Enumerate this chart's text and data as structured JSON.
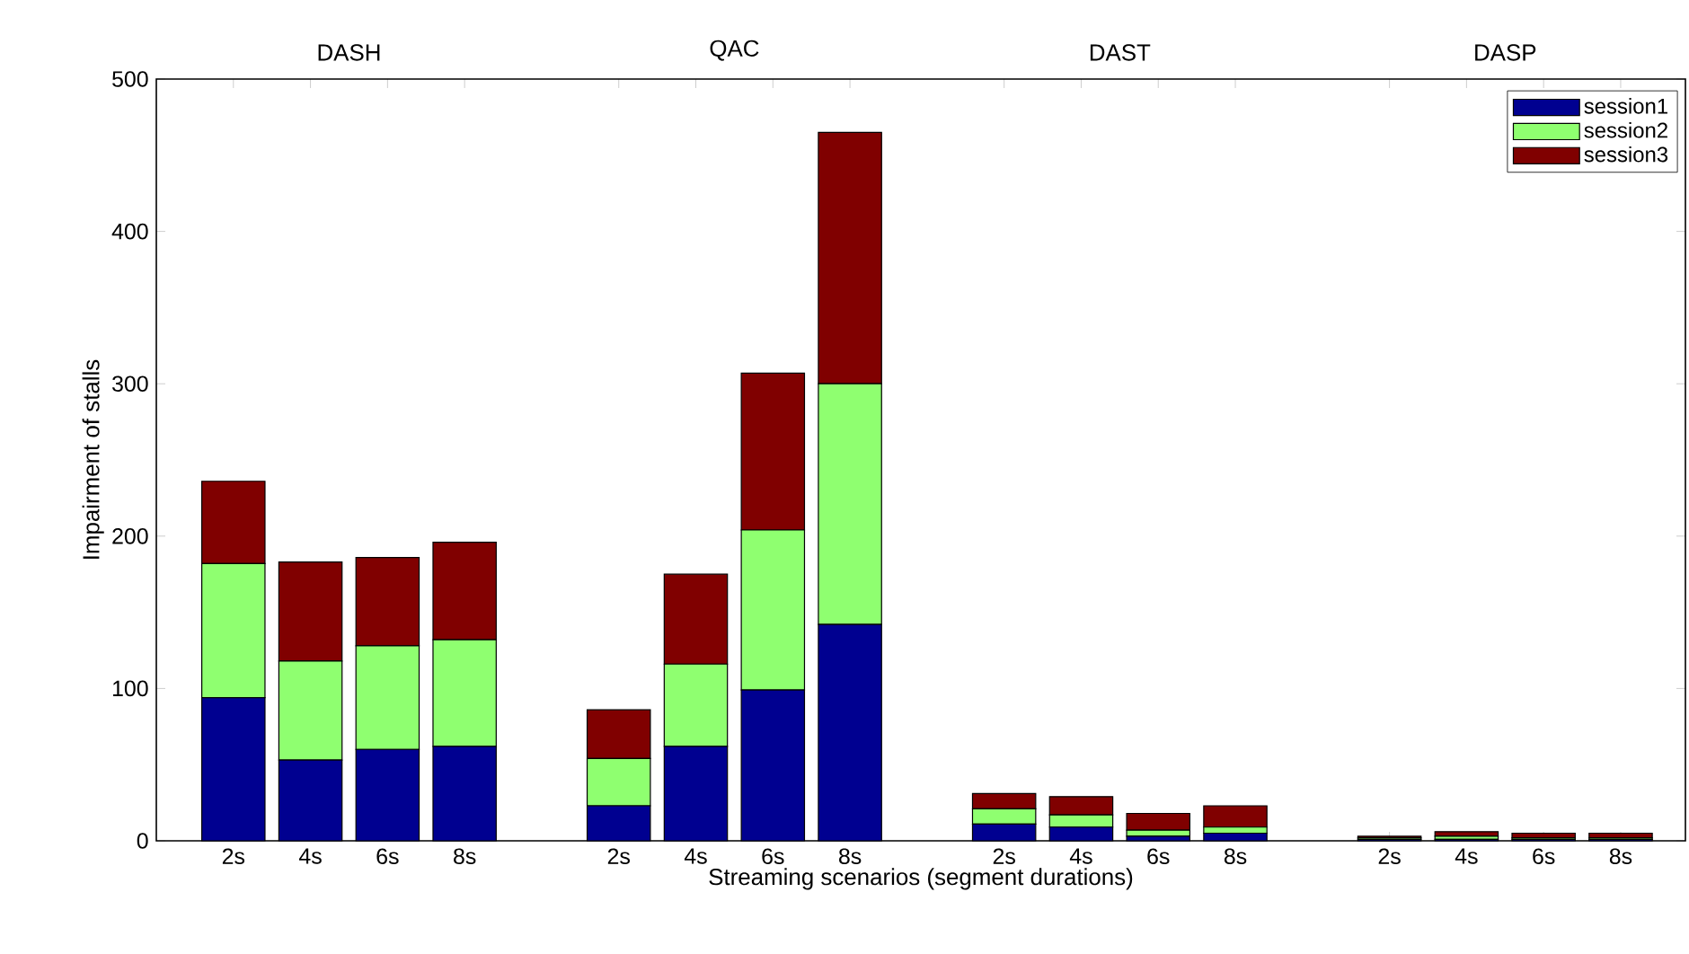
{
  "chart_data": {
    "type": "bar",
    "stacked": true,
    "xlabel": "Streaming scenarios (segment durations)",
    "ylabel": "Impairment of stalls",
    "categories": [
      "2s",
      "4s",
      "6s",
      "8s",
      null,
      "2s",
      "4s",
      "6s",
      "8s",
      null,
      "2s",
      "4s",
      "6s",
      "8s",
      null,
      "2s",
      "4s",
      "6s",
      "8s"
    ],
    "annotations": [
      "DASH",
      "QAC",
      "DAST",
      "DASP"
    ],
    "series": [
      {
        "name": "session1",
        "color": "#000090",
        "values": [
          94,
          53,
          60,
          62,
          null,
          23,
          62,
          99,
          142,
          null,
          11,
          9,
          3,
          5,
          null,
          1,
          1,
          1,
          1
        ]
      },
      {
        "name": "session2",
        "color": "#8fff70",
        "values": [
          88,
          65,
          68,
          70,
          null,
          31,
          54,
          105,
          158,
          null,
          10,
          8,
          4,
          4,
          null,
          1,
          2,
          1,
          1
        ]
      },
      {
        "name": "session3",
        "color": "#800000",
        "values": [
          54,
          65,
          58,
          64,
          null,
          32,
          59,
          103,
          165,
          null,
          10,
          12,
          11,
          14,
          null,
          1,
          3,
          3,
          3
        ]
      }
    ],
    "ylim": [
      0,
      500
    ],
    "yticks": [
      0,
      100,
      200,
      300,
      400,
      500
    ],
    "grid": false,
    "legend": "top right"
  }
}
